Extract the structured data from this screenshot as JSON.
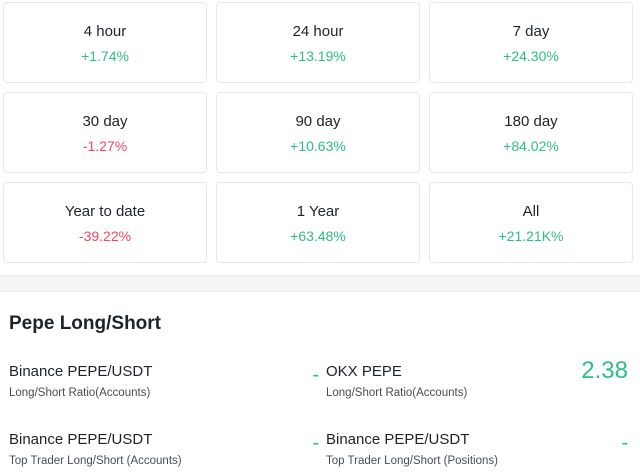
{
  "performance": [
    {
      "period": "4 hour",
      "change": "+1.74%",
      "direction": "up"
    },
    {
      "period": "24 hour",
      "change": "+13.19%",
      "direction": "up"
    },
    {
      "period": "7 day",
      "change": "+24.30%",
      "direction": "up"
    },
    {
      "period": "30 day",
      "change": "-1.27%",
      "direction": "down"
    },
    {
      "period": "90 day",
      "change": "+10.63%",
      "direction": "up"
    },
    {
      "period": "180 day",
      "change": "+84.02%",
      "direction": "up"
    },
    {
      "period": "Year to date",
      "change": "-39.22%",
      "direction": "down"
    },
    {
      "period": "1 Year",
      "change": "+63.48%",
      "direction": "up"
    },
    {
      "period": "All",
      "change": "+21.21K%",
      "direction": "up"
    }
  ],
  "long_short": {
    "title": "Pepe Long/Short",
    "items": [
      {
        "market": "Binance PEPE/USDT",
        "metric": "Long/Short Ratio(Accounts)",
        "value": "-"
      },
      {
        "market": "OKX PEPE",
        "metric": "Long/Short Ratio(Accounts)",
        "value": "2.38"
      },
      {
        "market": "Binance PEPE/USDT",
        "metric": "Top Trader Long/Short (Accounts)",
        "value": "-"
      },
      {
        "market": "Binance PEPE/USDT",
        "metric": "Top Trader Long/Short (Positions)",
        "value": "-"
      }
    ]
  },
  "colors": {
    "up": "#2ebd85",
    "down": "#f6465d",
    "text": "#1e2329"
  }
}
